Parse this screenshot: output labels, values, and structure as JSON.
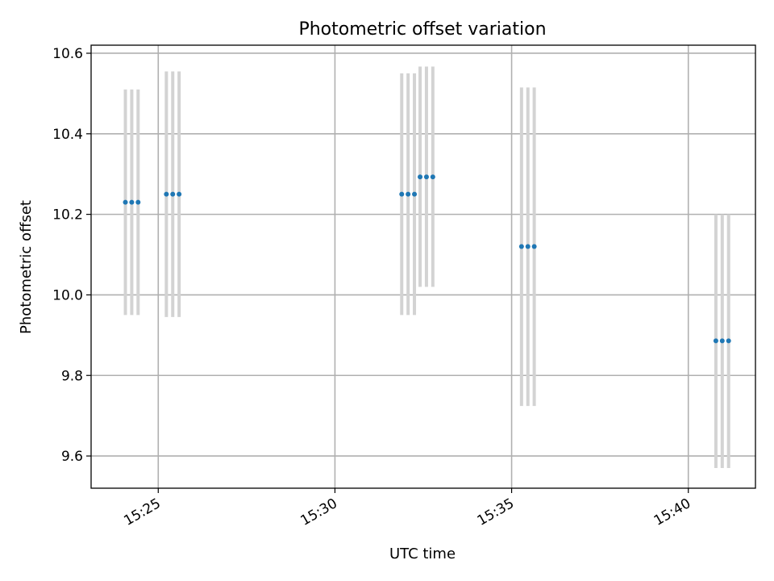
{
  "chart_data": {
    "type": "scatter",
    "title": "Photometric offset variation",
    "xlabel": "UTC time",
    "ylabel": "Photometric offset",
    "x_unit": "minutes after 15:00 UTC",
    "xlim": [
      23.1,
      41.9
    ],
    "ylim": [
      9.52,
      10.62
    ],
    "x_ticks": [
      {
        "value": 25,
        "label": "15:25"
      },
      {
        "value": 30,
        "label": "15:30"
      },
      {
        "value": 35,
        "label": "15:35"
      },
      {
        "value": 40,
        "label": "15:40"
      }
    ],
    "y_ticks": [
      {
        "value": 9.6,
        "label": "9.6"
      },
      {
        "value": 9.8,
        "label": "9.8"
      },
      {
        "value": 10.0,
        "label": "10.0"
      },
      {
        "value": 10.2,
        "label": "10.2"
      },
      {
        "value": 10.4,
        "label": "10.4"
      },
      {
        "value": 10.6,
        "label": "10.6"
      }
    ],
    "grid": true,
    "point_color": "#1f77b4",
    "errorbar_color": "#d3d3d3",
    "series": [
      {
        "points": [
          {
            "x": 24.07,
            "y": 10.23,
            "ylow": 9.95,
            "yhigh": 10.51
          },
          {
            "x": 24.25,
            "y": 10.23,
            "ylow": 9.95,
            "yhigh": 10.51
          },
          {
            "x": 24.43,
            "y": 10.23,
            "ylow": 9.95,
            "yhigh": 10.51
          },
          {
            "x": 25.23,
            "y": 10.25,
            "ylow": 9.945,
            "yhigh": 10.555
          },
          {
            "x": 25.41,
            "y": 10.25,
            "ylow": 9.945,
            "yhigh": 10.555
          },
          {
            "x": 25.59,
            "y": 10.25,
            "ylow": 9.945,
            "yhigh": 10.555
          },
          {
            "x": 31.89,
            "y": 10.25,
            "ylow": 9.95,
            "yhigh": 10.55
          },
          {
            "x": 32.07,
            "y": 10.25,
            "ylow": 9.95,
            "yhigh": 10.55
          },
          {
            "x": 32.25,
            "y": 10.25,
            "ylow": 9.95,
            "yhigh": 10.55
          },
          {
            "x": 32.41,
            "y": 10.293,
            "ylow": 10.02,
            "yhigh": 10.567
          },
          {
            "x": 32.59,
            "y": 10.293,
            "ylow": 10.02,
            "yhigh": 10.567
          },
          {
            "x": 32.77,
            "y": 10.293,
            "ylow": 10.02,
            "yhigh": 10.567
          },
          {
            "x": 35.28,
            "y": 10.12,
            "ylow": 9.724,
            "yhigh": 10.515
          },
          {
            "x": 35.46,
            "y": 10.12,
            "ylow": 9.724,
            "yhigh": 10.515
          },
          {
            "x": 35.64,
            "y": 10.12,
            "ylow": 9.724,
            "yhigh": 10.515
          },
          {
            "x": 40.78,
            "y": 9.886,
            "ylow": 9.57,
            "yhigh": 10.2
          },
          {
            "x": 40.96,
            "y": 9.886,
            "ylow": 9.57,
            "yhigh": 10.2
          },
          {
            "x": 41.14,
            "y": 9.886,
            "ylow": 9.57,
            "yhigh": 10.2
          }
        ]
      }
    ]
  }
}
